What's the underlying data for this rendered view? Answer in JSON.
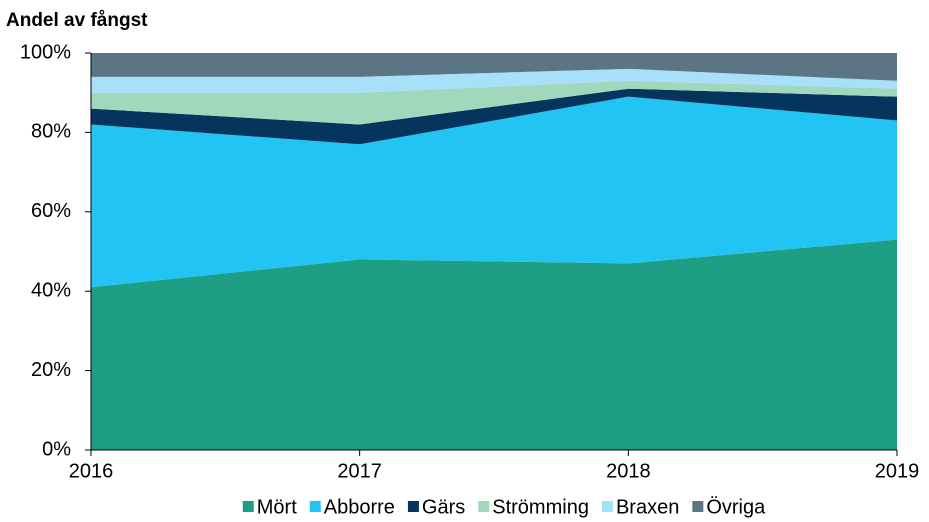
{
  "chart_data": {
    "type": "stacked_area",
    "title": "Andel av fångst",
    "x": [
      2016,
      2017,
      2018,
      2019
    ],
    "xlim": [
      2016,
      2019
    ],
    "xticks": [
      2016,
      2017,
      2018,
      2019
    ],
    "ylim": [
      0,
      100
    ],
    "yticks": [
      {
        "value": 0,
        "label": "0%"
      },
      {
        "value": 20,
        "label": "20%"
      },
      {
        "value": 40,
        "label": "40%"
      },
      {
        "value": 60,
        "label": "60%"
      },
      {
        "value": 80,
        "label": "80%"
      },
      {
        "value": 100,
        "label": "100%"
      }
    ],
    "grid": false,
    "legend": "bottom",
    "series": [
      {
        "name": "Mört",
        "color": "#1e9e84",
        "values": [
          41,
          48,
          47,
          53
        ]
      },
      {
        "name": "Abborre",
        "color": "#21c4f3",
        "values": [
          41,
          29,
          42,
          30
        ]
      },
      {
        "name": "Gärs",
        "color": "#05355c",
        "values": [
          4,
          5,
          2,
          6
        ]
      },
      {
        "name": "Strömming",
        "color": "#9fd8bd",
        "values": [
          4,
          8,
          2,
          2
        ]
      },
      {
        "name": "Braxen",
        "color": "#a8e0f9",
        "values": [
          4,
          4,
          3,
          2
        ]
      },
      {
        "name": "Övriga",
        "color": "#5c7585",
        "values": [
          6,
          6,
          4,
          7
        ]
      }
    ]
  }
}
